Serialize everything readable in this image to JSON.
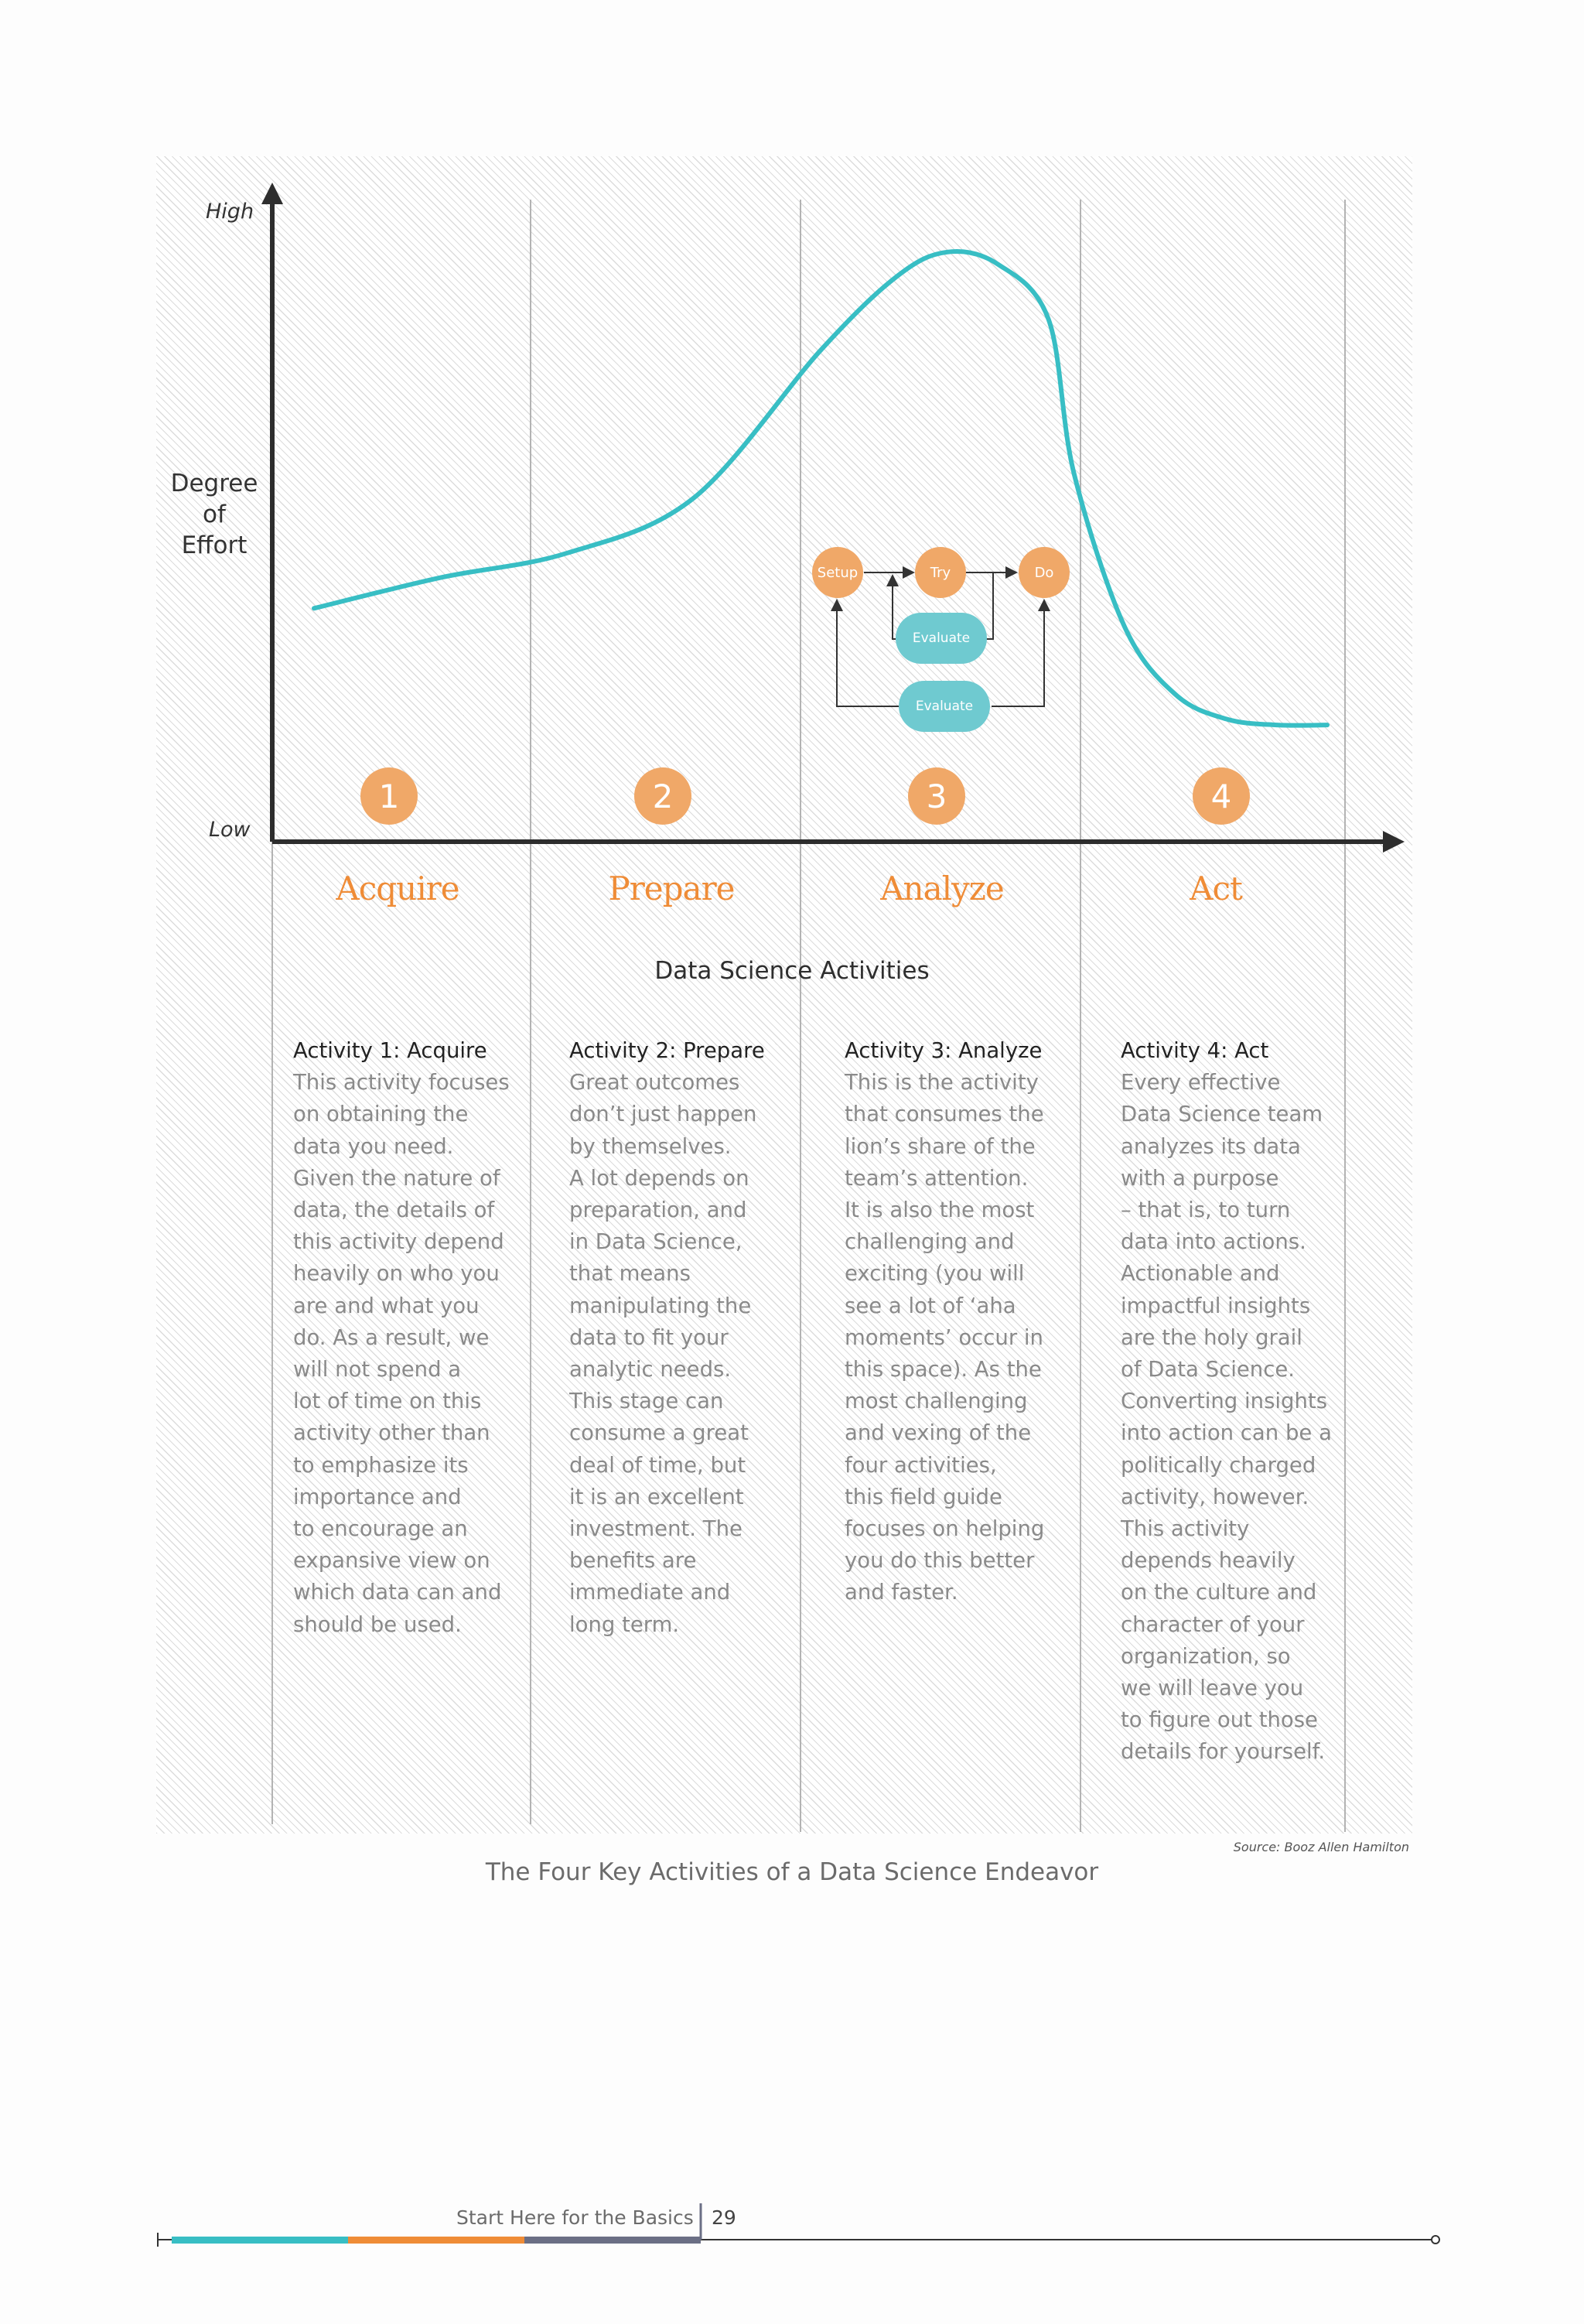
{
  "chart_data": {
    "type": "line",
    "title": "",
    "ylabel": "Degree of Effort",
    "xlabel": "Data Science Activities",
    "y_tick_labels": [
      "High",
      "Low"
    ],
    "categories": [
      "Acquire",
      "Prepare",
      "Analyze",
      "Act"
    ],
    "category_numbers": [
      "1",
      "2",
      "3",
      "4"
    ],
    "x": [
      0.0,
      0.5,
      1.0,
      1.5,
      2.0,
      2.3,
      2.5,
      2.7,
      2.9,
      3.0,
      3.2,
      3.4,
      3.6,
      3.8,
      4.0
    ],
    "y": [
      0.38,
      0.43,
      0.47,
      0.56,
      0.8,
      0.92,
      0.96,
      0.94,
      0.85,
      0.6,
      0.35,
      0.24,
      0.2,
      0.19,
      0.19
    ],
    "xlim": [
      0,
      4
    ],
    "ylim": [
      0,
      1
    ],
    "series_color": "#38bec4",
    "grid": false
  },
  "labels": {
    "y_high": "High",
    "y_low": "Low",
    "y_title_lines": [
      "Degree",
      "of",
      "Effort"
    ],
    "x_title": "Data Science Activities"
  },
  "flow": {
    "setup": "Setup",
    "try": "Try",
    "do": "Do",
    "evaluate_inner": "Evaluate",
    "evaluate_outer": "Evaluate"
  },
  "activities": [
    {
      "heading": "Activity 1: Acquire",
      "lines": [
        "This activity focuses",
        "on obtaining the",
        "data you need.",
        "Given the nature of",
        "data, the details of",
        "this activity depend",
        "heavily on who you",
        "are and what you",
        "do. As a result, we",
        "will not spend a",
        "lot of time on this",
        "activity other than",
        "to emphasize its",
        "importance and",
        "to encourage an",
        "expansive view on",
        "which data can and",
        "should be used."
      ]
    },
    {
      "heading": "Activity 2: Prepare",
      "lines": [
        "Great outcomes",
        "don’t just happen",
        "by themselves.",
        "A lot depends on",
        "preparation, and",
        "in Data Science,",
        "that means",
        "manipulating the",
        "data to fit your",
        "analytic needs.",
        "This stage can",
        "consume a great",
        "deal of time, but",
        "it is an excellent",
        "investment. The",
        "benefits are",
        "immediate and",
        "long term."
      ]
    },
    {
      "heading": "Activity 3: Analyze",
      "lines": [
        "This is the activity",
        "that consumes the",
        "lion’s share of the",
        "team’s attention.",
        "It is also the most",
        "challenging and",
        "exciting (you will",
        "see a lot of ‘aha",
        "moments’ occur in",
        "this space). As the",
        "most challenging",
        "and vexing of the",
        "four activities,",
        "this field guide",
        "focuses on helping",
        "you do this better",
        "and faster."
      ]
    },
    {
      "heading": "Activity 4: Act",
      "lines": [
        "Every effective",
        "Data Science team",
        "analyzes its data",
        "with a purpose",
        "– that is, to turn",
        "data into actions.",
        "Actionable and",
        "impactful insights",
        "are the holy grail",
        "of Data Science.",
        "Converting insights",
        "into action can be a",
        "politically charged",
        "activity, however.",
        "This activity",
        "depends heavily",
        "on the culture and",
        "character of your",
        "organization, so",
        "we will leave you",
        "to figure out those",
        "details for yourself."
      ]
    }
  ],
  "source": "Source: Booz Allen Hamilton",
  "caption": "The Four Key Activities of a Data Science Endeavor",
  "footer": {
    "section": "Start Here for the Basics",
    "page": "29",
    "colors": [
      "#38bec4",
      "#ef8c37",
      "#6b6f85"
    ]
  }
}
